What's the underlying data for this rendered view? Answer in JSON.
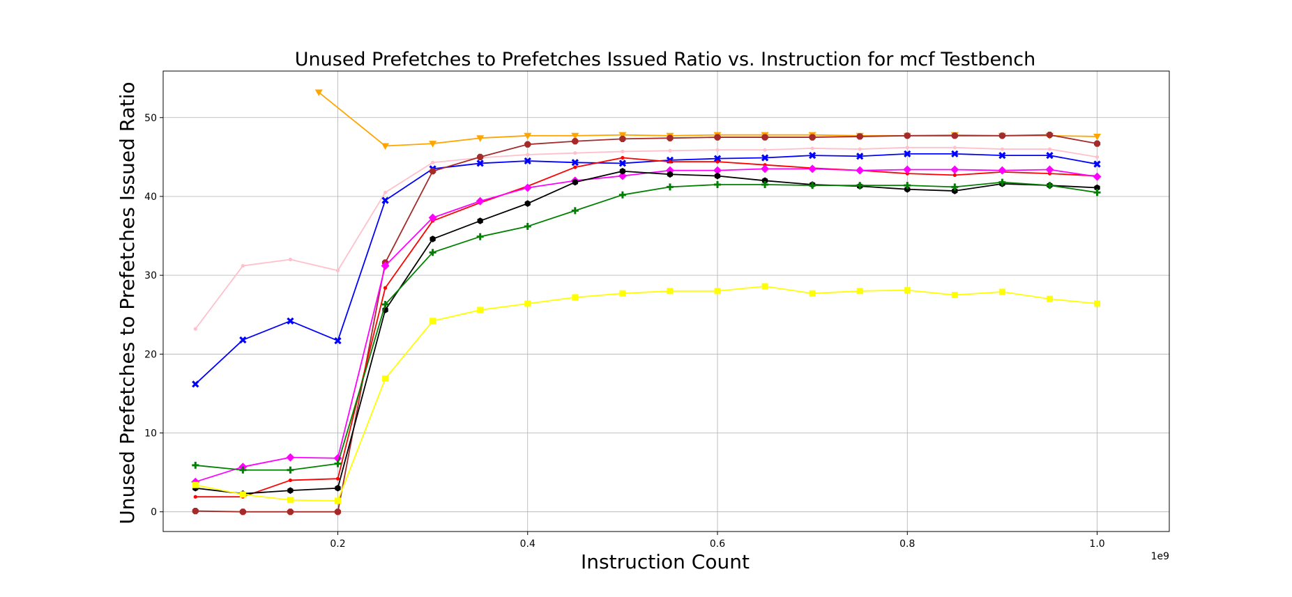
{
  "chart_data": {
    "type": "line",
    "title": "Unused Prefetches to Prefetches Issued Ratio vs. Instruction for mcf Testbench",
    "xlabel": "Instruction Count",
    "ylabel": "Unused Prefetches to Prefetches Issued Ratio",
    "x_offset_label": "1e9",
    "xlim": [
      0.016,
      1.076
    ],
    "ylim": [
      -2.5,
      55.9
    ],
    "x_ticks": [
      0.2,
      0.4,
      0.6,
      0.8,
      1.0
    ],
    "x_tick_labels": [
      "0.2",
      "0.4",
      "0.6",
      "0.8",
      "1.0"
    ],
    "y_ticks": [
      0,
      10,
      20,
      30,
      40,
      50
    ],
    "y_tick_labels": [
      "0",
      "10",
      "20",
      "30",
      "40",
      "50"
    ],
    "grid": true,
    "legend": "none",
    "series": [
      {
        "color": "#ffc0cb",
        "marker": "point",
        "x": [
          0.05,
          0.1,
          0.15,
          0.2,
          0.25,
          0.3,
          0.35,
          0.4,
          0.45,
          0.5,
          0.55,
          0.6,
          0.65,
          0.7,
          0.75,
          0.8,
          0.85,
          0.9,
          0.95,
          1.0
        ],
        "values": [
          23.2,
          31.2,
          32.0,
          30.6,
          40.5,
          44.3,
          44.9,
          45.3,
          45.5,
          45.7,
          45.8,
          45.9,
          45.9,
          46.1,
          46.0,
          46.2,
          46.2,
          46.0,
          46.0,
          45.0
        ]
      },
      {
        "color": "#0000ff",
        "marker": "x-filled",
        "x": [
          0.05,
          0.1,
          0.15,
          0.2,
          0.25,
          0.3,
          0.35,
          0.4,
          0.45,
          0.5,
          0.55,
          0.6,
          0.65,
          0.7,
          0.75,
          0.8,
          0.85,
          0.9,
          0.95,
          1.0
        ],
        "values": [
          16.2,
          21.8,
          24.2,
          21.7,
          39.5,
          43.5,
          44.2,
          44.5,
          44.3,
          44.2,
          44.6,
          44.8,
          44.9,
          45.2,
          45.1,
          45.4,
          45.4,
          45.2,
          45.2,
          44.1
        ]
      },
      {
        "color": "#ffa500",
        "marker": "triangle-down",
        "x": [
          0.18,
          0.25,
          0.3,
          0.35,
          0.4,
          0.45,
          0.5,
          0.55,
          0.6,
          0.65,
          0.7,
          0.75,
          0.8,
          0.85,
          0.9,
          0.95,
          1.0
        ],
        "values": [
          53.2,
          46.4,
          46.7,
          47.4,
          47.7,
          47.7,
          47.8,
          47.7,
          47.8,
          47.8,
          47.8,
          47.7,
          47.7,
          47.8,
          47.7,
          47.7,
          47.6
        ]
      },
      {
        "color": "#a52a2a",
        "marker": "octagon",
        "x": [
          0.05,
          0.1,
          0.15,
          0.2,
          0.25,
          0.3,
          0.35,
          0.4,
          0.45,
          0.5,
          0.55,
          0.6,
          0.65,
          0.7,
          0.75,
          0.8,
          0.85,
          0.9,
          0.95,
          1.0
        ],
        "values": [
          0.1,
          0.0,
          0.0,
          0.0,
          31.6,
          43.2,
          45.0,
          46.6,
          47.0,
          47.3,
          47.4,
          47.5,
          47.5,
          47.5,
          47.6,
          47.7,
          47.7,
          47.7,
          47.8,
          46.7
        ]
      },
      {
        "color": "#ff0000",
        "marker": "point",
        "x": [
          0.05,
          0.1,
          0.15,
          0.2,
          0.25,
          0.3,
          0.35,
          0.4,
          0.45,
          0.5,
          0.55,
          0.6,
          0.65,
          0.7,
          0.75,
          0.8,
          0.85,
          0.9,
          0.95,
          1.0
        ],
        "values": [
          1.9,
          1.9,
          4.0,
          4.2,
          28.4,
          36.9,
          39.2,
          41.3,
          43.7,
          44.9,
          44.4,
          44.4,
          44.0,
          43.6,
          43.3,
          42.9,
          42.7,
          43.1,
          42.9,
          42.6
        ]
      },
      {
        "color": "#ff00ff",
        "marker": "diamond",
        "x": [
          0.05,
          0.1,
          0.15,
          0.2,
          0.25,
          0.3,
          0.35,
          0.4,
          0.45,
          0.5,
          0.55,
          0.6,
          0.65,
          0.7,
          0.75,
          0.8,
          0.85,
          0.9,
          0.95,
          1.0
        ],
        "values": [
          3.8,
          5.7,
          6.9,
          6.8,
          31.2,
          37.3,
          39.4,
          41.1,
          42.0,
          42.6,
          43.3,
          43.3,
          43.5,
          43.5,
          43.3,
          43.4,
          43.4,
          43.3,
          43.4,
          42.5
        ]
      },
      {
        "color": "#000000",
        "marker": "hexagon",
        "x": [
          0.05,
          0.1,
          0.15,
          0.2,
          0.25,
          0.3,
          0.35,
          0.4,
          0.45,
          0.5,
          0.55,
          0.6,
          0.65,
          0.7,
          0.75,
          0.8,
          0.85,
          0.9,
          0.95,
          1.0
        ],
        "values": [
          3.0,
          2.3,
          2.7,
          3.0,
          25.6,
          34.6,
          36.9,
          39.1,
          41.8,
          43.2,
          42.8,
          42.6,
          42.0,
          41.5,
          41.3,
          40.9,
          40.7,
          41.6,
          41.4,
          41.1
        ]
      },
      {
        "color": "#008000",
        "marker": "plus",
        "x": [
          0.05,
          0.1,
          0.15,
          0.2,
          0.25,
          0.3,
          0.35,
          0.4,
          0.45,
          0.5,
          0.55,
          0.6,
          0.65,
          0.7,
          0.75,
          0.8,
          0.85,
          0.9,
          0.95,
          1.0
        ],
        "values": [
          5.9,
          5.3,
          5.3,
          6.1,
          26.3,
          32.9,
          34.9,
          36.2,
          38.2,
          40.2,
          41.2,
          41.5,
          41.5,
          41.4,
          41.4,
          41.4,
          41.2,
          41.8,
          41.4,
          40.5
        ]
      },
      {
        "color": "#ffff00",
        "marker": "square",
        "x": [
          0.05,
          0.1,
          0.15,
          0.2,
          0.25,
          0.3,
          0.35,
          0.4,
          0.45,
          0.5,
          0.55,
          0.6,
          0.65,
          0.7,
          0.75,
          0.8,
          0.85,
          0.9,
          0.95,
          1.0
        ],
        "values": [
          3.4,
          2.2,
          1.5,
          1.4,
          16.9,
          24.2,
          25.6,
          26.4,
          27.2,
          27.7,
          28.0,
          28.0,
          28.6,
          27.7,
          28.0,
          28.1,
          27.5,
          27.9,
          27.0,
          26.4
        ]
      }
    ]
  }
}
